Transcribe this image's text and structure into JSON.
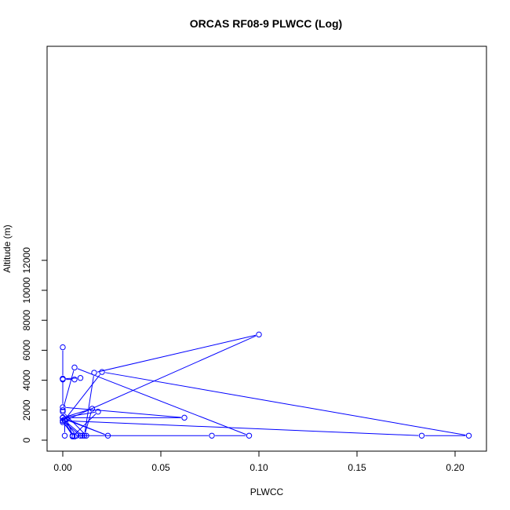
{
  "chart_data": {
    "type": "line",
    "title": "ORCAS RF08-9 PLWCC (Log)",
    "xlabel": "PLWCC",
    "ylabel": "Altitude (m)",
    "xlim": [
      0,
      0.21
    ],
    "ylim": [
      0,
      13000
    ],
    "x_ticks": [
      0.0,
      0.05,
      0.1,
      0.15,
      0.2
    ],
    "x_tick_labels": [
      "0.00",
      "0.05",
      "0.10",
      "0.15",
      "0.20"
    ],
    "y_ticks": [
      0,
      2000,
      4000,
      6000,
      8000,
      10000,
      12000
    ],
    "y_tick_labels": [
      "0",
      "2000",
      "4000",
      "6000",
      "8000",
      "10000",
      "12000"
    ],
    "marker": "open-circle",
    "color": "#0000ff",
    "grid": false,
    "series": [
      {
        "x": [
          0.0,
          0.0,
          0.0,
          0.0,
          0.006,
          0.009,
          0.0,
          0.0,
          0.062,
          0.0,
          0.0,
          0.015,
          0.011,
          0.016,
          0.1,
          0.001,
          0.0,
          0.001,
          0.023,
          0.0,
          0.018,
          0.005,
          0.001,
          0.007,
          0.012,
          0.0,
          0.0,
          0.006,
          0.095,
          0.076,
          0.009,
          0.0,
          0.005,
          0.002,
          0.0,
          0.183,
          0.207,
          0.02,
          0.0,
          0.006,
          0.01,
          0.001,
          0.001
        ],
        "y": [
          6200,
          4100,
          4100,
          4050,
          4050,
          4150,
          4100,
          2200,
          1500,
          1500,
          1500,
          2100,
          300,
          4500,
          7050,
          1300,
          1500,
          1400,
          300,
          1500,
          1900,
          250,
          1300,
          300,
          300,
          1900,
          2000,
          4850,
          300,
          300,
          300,
          1300,
          300,
          1400,
          1300,
          300,
          300,
          4550,
          1200,
          250,
          300,
          1300,
          300
        ]
      }
    ]
  }
}
